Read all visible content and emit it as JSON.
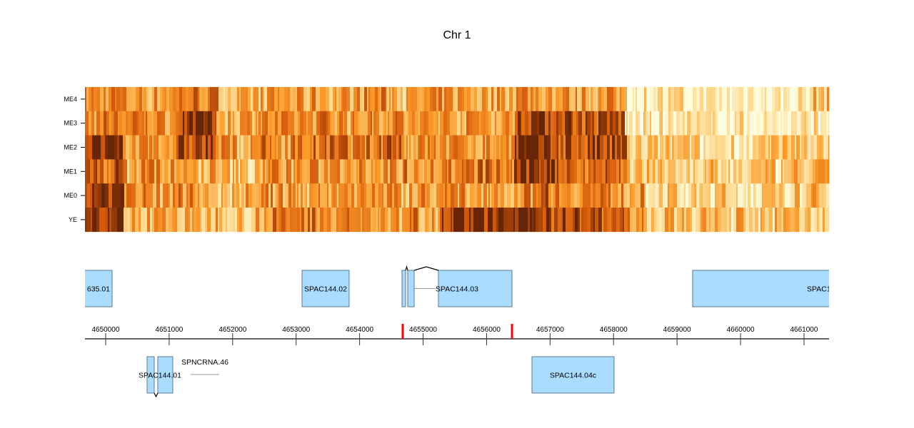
{
  "chart_data": {
    "type": "heatmap",
    "title": "Chr 1",
    "xlim": [
      4649674,
      4661394
    ],
    "rows": [
      "ME4",
      "ME3",
      "ME2",
      "ME1",
      "ME0",
      "YE"
    ],
    "color_scale": [
      "#fffde0",
      "#fed98e",
      "#fb9a29",
      "#d45a0c",
      "#662506"
    ],
    "values_note_bins": 40,
    "values": {
      "YE": [
        0.95,
        0.95,
        0.4,
        0.45,
        0.5,
        0.35,
        0.4,
        0.45,
        0.35,
        0.5,
        0.6,
        0.65,
        0.65,
        0.6,
        0.55,
        0.5,
        0.45,
        0.6,
        0.5,
        0.95,
        0.95,
        0.95,
        0.95,
        0.95,
        0.9,
        0.85,
        0.8,
        0.75,
        0.7,
        0.55,
        0.3,
        0.35,
        0.3,
        0.35,
        0.3,
        0.35,
        0.3,
        0.35,
        0.3,
        0.35
      ],
      "ME0": [
        0.9,
        0.9,
        0.5,
        0.55,
        0.5,
        0.6,
        0.5,
        0.35,
        0.45,
        0.5,
        0.5,
        0.45,
        0.5,
        0.5,
        0.55,
        0.6,
        0.5,
        0.5,
        0.55,
        0.5,
        0.5,
        0.55,
        0.5,
        0.55,
        0.75,
        0.6,
        0.6,
        0.6,
        0.55,
        0.5,
        0.3,
        0.3,
        0.2,
        0.25,
        0.3,
        0.2,
        0.25,
        0.2,
        0.3,
        0.35
      ],
      "ME1": [
        0.7,
        0.75,
        0.45,
        0.6,
        0.5,
        0.4,
        0.45,
        0.35,
        0.3,
        0.5,
        0.55,
        0.5,
        0.5,
        0.55,
        0.6,
        0.55,
        0.5,
        0.6,
        0.55,
        0.6,
        0.6,
        0.65,
        0.6,
        0.85,
        0.9,
        0.8,
        0.7,
        0.75,
        0.7,
        0.35,
        0.3,
        0.35,
        0.25,
        0.3,
        0.25,
        0.3,
        0.3,
        0.25,
        0.35,
        0.35
      ],
      "ME2": [
        0.9,
        0.9,
        0.5,
        0.6,
        0.55,
        0.8,
        0.85,
        0.5,
        0.45,
        0.6,
        0.55,
        0.6,
        0.65,
        0.65,
        0.55,
        0.6,
        0.8,
        0.5,
        0.55,
        0.5,
        0.55,
        0.5,
        0.55,
        0.9,
        0.9,
        0.8,
        0.75,
        0.8,
        0.75,
        0.3,
        0.25,
        0.3,
        0.25,
        0.2,
        0.25,
        0.2,
        0.25,
        0.3,
        0.3,
        0.35
      ],
      "ME3": [
        0.6,
        0.6,
        0.55,
        0.6,
        0.55,
        0.95,
        0.95,
        0.45,
        0.5,
        0.55,
        0.5,
        0.55,
        0.6,
        0.55,
        0.5,
        0.55,
        0.6,
        0.45,
        0.5,
        0.5,
        0.5,
        0.55,
        0.5,
        0.9,
        0.9,
        0.85,
        0.8,
        0.75,
        0.8,
        0.1,
        0.15,
        0.1,
        0.15,
        0.1,
        0.1,
        0.15,
        0.1,
        0.1,
        0.15,
        0.2
      ],
      "ME4": [
        0.55,
        0.6,
        0.5,
        0.5,
        0.55,
        0.65,
        0.6,
        0.4,
        0.35,
        0.45,
        0.5,
        0.45,
        0.5,
        0.45,
        0.5,
        0.55,
        0.5,
        0.4,
        0.45,
        0.5,
        0.5,
        0.45,
        0.5,
        0.6,
        0.55,
        0.5,
        0.5,
        0.45,
        0.5,
        0.1,
        0.2,
        0.15,
        0.1,
        0.1,
        0.1,
        0.15,
        0.1,
        0.1,
        0.15,
        0.35
      ]
    },
    "axis_ticks": [
      "4650000",
      "4651000",
      "4652000",
      "4653000",
      "4654000",
      "4655000",
      "4656000",
      "4657000",
      "4658000",
      "4659000",
      "4660000",
      "4661000"
    ],
    "markers": [
      4654679,
      4656400
    ],
    "marker_color": "#ff0000",
    "gene_color": "#aadcff",
    "genes": [
      {
        "label": "635.01",
        "strand": "+",
        "exons": [
          [
            4649500,
            4650101
          ]
        ]
      },
      {
        "label": "SPAC144.02",
        "strand": "+",
        "exons": [
          [
            4653093,
            4653835
          ]
        ]
      },
      {
        "label": "SPAC144.03",
        "strand": "+",
        "exons": [
          [
            4654668,
            4654724
          ],
          [
            4654758,
            4654859
          ],
          [
            4655241,
            4656400
          ]
        ]
      },
      {
        "label": "SPAC1",
        "strand": "+",
        "exons": [
          [
            4659245,
            4662000
          ]
        ]
      },
      {
        "label": "SPAC144.01",
        "strand": "-",
        "exons": [
          [
            4650652,
            4650765
          ],
          [
            4650821,
            4651057
          ]
        ]
      },
      {
        "label": "SPNCRNA.46",
        "strand": "-",
        "ncrna": true,
        "exons": [
          [
            4651338,
            4651788
          ]
        ]
      },
      {
        "label": "SPAC144.04c",
        "strand": "-",
        "exons": [
          [
            4656715,
            4658008
          ]
        ]
      }
    ]
  }
}
